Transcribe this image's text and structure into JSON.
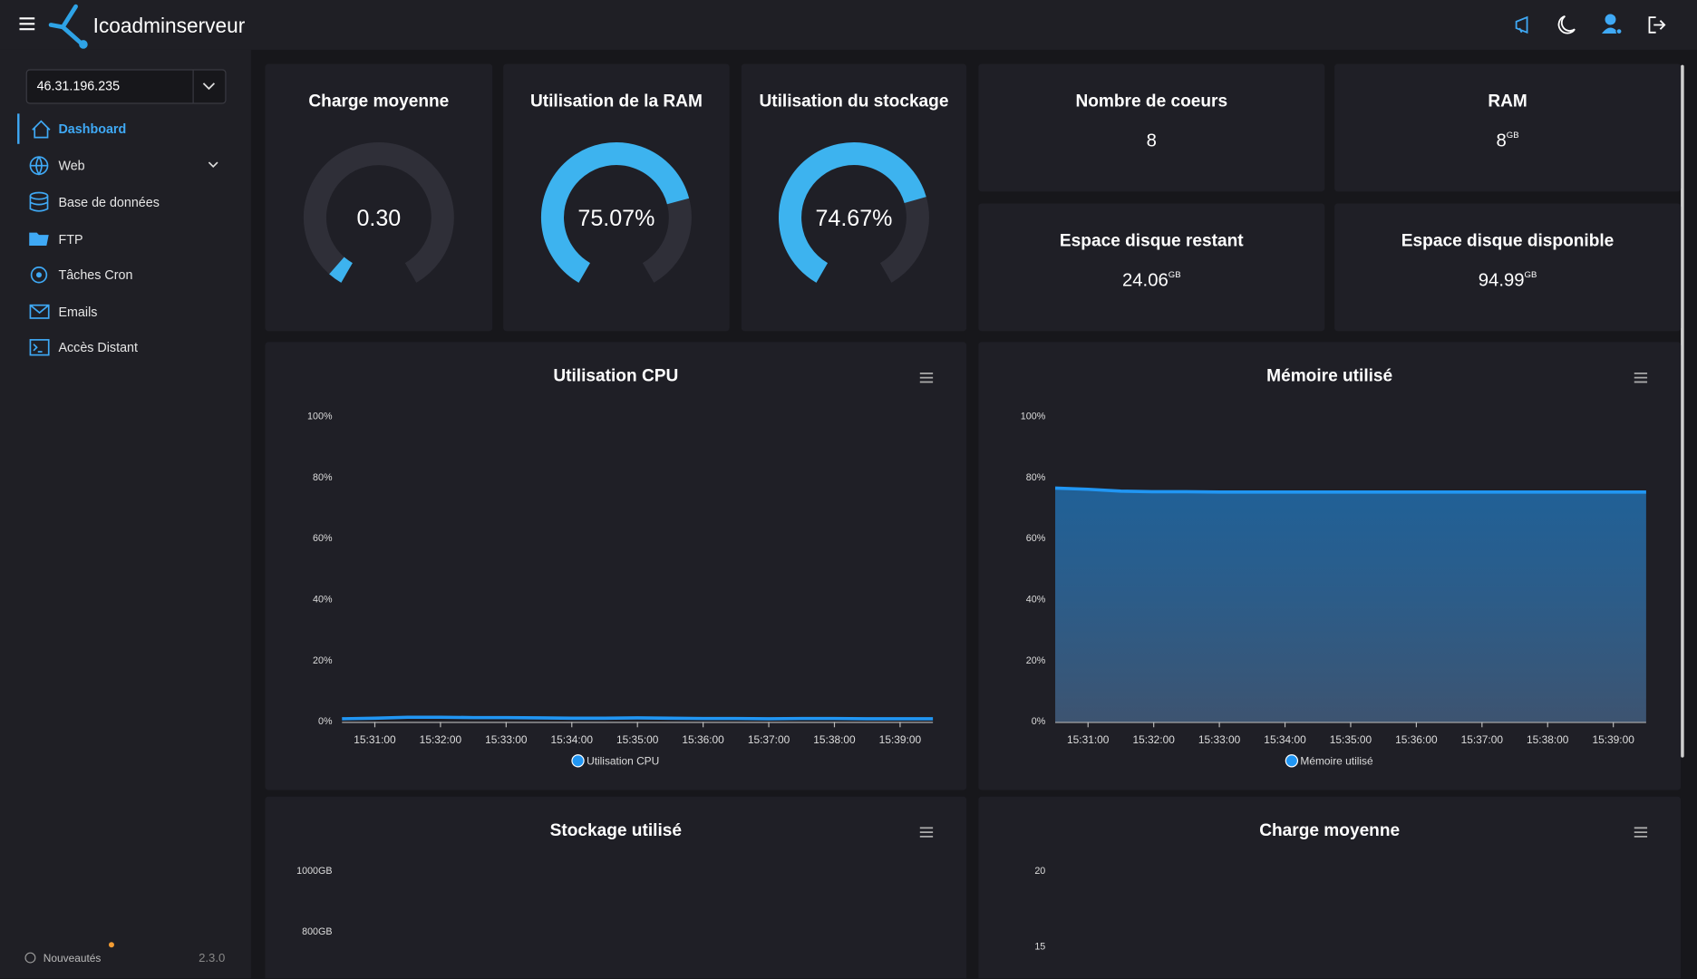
{
  "header": {
    "brand": "Icoadminserveur"
  },
  "sidebar": {
    "server": "46.31.196.235",
    "menu": [
      "Dashboard",
      "Web",
      "Base de données",
      "FTP",
      "Tâches Cron",
      "Emails",
      "Accès Distant"
    ],
    "news": "Nouveautés",
    "version": "2.3.0"
  },
  "gauges": [
    {
      "title": "Charge moyenne",
      "value": 0.3,
      "value_label": "0.30"
    },
    {
      "title": "Utilisation de la RAM",
      "value": 75.07,
      "value_label": "75.07%"
    },
    {
      "title": "Utilisation du stockage",
      "value": 74.67,
      "value_label": "74.67%"
    }
  ],
  "stats": [
    {
      "title": "Nombre de coeurs",
      "value": "8"
    },
    {
      "title": "RAM",
      "value": "8",
      "unit": "GB"
    },
    {
      "title": "Espace disque restant",
      "value": "24.06",
      "unit": "GB"
    },
    {
      "title": "Espace disque disponible",
      "value": "94.99",
      "unit": "GB"
    }
  ],
  "charts": [
    {
      "type": "line",
      "title": "Utilisation CPU",
      "categories": [
        null,
        "15:31:00",
        null,
        "15:32:00",
        null,
        "15:33:00",
        null,
        "15:34:00",
        null,
        "15:35:00",
        null,
        "15:36:00",
        null,
        "15:37:00",
        null,
        "15:38:00",
        null,
        "15:39:00",
        null
      ],
      "series": [
        {
          "name": "Utilisation CPU",
          "color": "#2196f3",
          "values": [
            1.0,
            1.2,
            1.5,
            1.5,
            1.4,
            1.4,
            1.3,
            1.2,
            1.2,
            1.3,
            1.2,
            1.1,
            1.1,
            1.0,
            1.1,
            1.1,
            1.0,
            1.0,
            1.0
          ]
        }
      ],
      "ylim": [
        0,
        100
      ],
      "yticks": [
        {
          "value": 0,
          "label": "0%"
        },
        {
          "value": 20,
          "label": "20%"
        },
        {
          "value": 40,
          "label": "40%"
        },
        {
          "value": 60,
          "label": "60%"
        },
        {
          "value": 80,
          "label": "80%"
        },
        {
          "value": 100,
          "label": "100%"
        }
      ]
    },
    {
      "type": "area",
      "title": "Mémoire utilisé",
      "categories": [
        null,
        "15:31:00",
        null,
        "15:32:00",
        null,
        "15:33:00",
        null,
        "15:34:00",
        null,
        "15:35:00",
        null,
        "15:36:00",
        null,
        "15:37:00",
        null,
        "15:38:00",
        null,
        "15:39:00",
        null
      ],
      "series": [
        {
          "name": "Mémoire utilisé",
          "color": "#2196f3",
          "values": [
            76.6,
            76.2,
            75.6,
            75.4,
            75.4,
            75.3,
            75.3,
            75.3,
            75.3,
            75.3,
            75.3,
            75.3,
            75.3,
            75.3,
            75.3,
            75.3,
            75.3,
            75.3,
            75.3
          ]
        }
      ],
      "ylim": [
        0,
        100
      ],
      "yticks": [
        {
          "value": 0,
          "label": "0%"
        },
        {
          "value": 20,
          "label": "20%"
        },
        {
          "value": 40,
          "label": "40%"
        },
        {
          "value": 60,
          "label": "60%"
        },
        {
          "value": 80,
          "label": "80%"
        },
        {
          "value": 100,
          "label": "100%"
        }
      ]
    },
    {
      "type": "line",
      "title": "Stockage utilisé",
      "ylim": [
        0,
        1000
      ],
      "yticks": [
        {
          "value": 1000,
          "label": "1000GB"
        },
        {
          "value": 800,
          "label": "800GB"
        }
      ]
    },
    {
      "type": "line",
      "title": "Charge moyenne",
      "ylim": [
        0,
        20
      ],
      "yticks": [
        20,
        15
      ]
    }
  ]
}
